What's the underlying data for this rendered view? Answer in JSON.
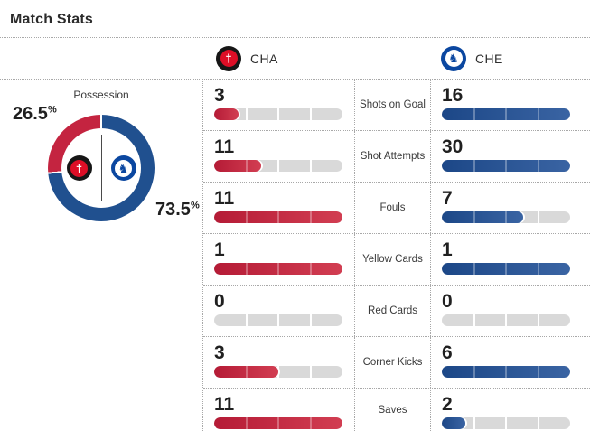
{
  "page": {
    "title": "Match Stats"
  },
  "teams": {
    "home": {
      "abbr": "CHA",
      "color": "#c8233f"
    },
    "away": {
      "abbr": "CHE",
      "color": "#1e4f90"
    }
  },
  "icons": {
    "cha_emblem": "†",
    "che_emblem": "♞"
  },
  "possession": {
    "label": "Possession",
    "home_pct": "26.5",
    "away_pct": "73.5",
    "pct_symbol": "%"
  },
  "stats": {
    "rows": [
      {
        "label": "Shots on Goal",
        "home": 3,
        "away": 16
      },
      {
        "label": "Shot Attempts",
        "home": 11,
        "away": 30
      },
      {
        "label": "Fouls",
        "home": 11,
        "away": 7
      },
      {
        "label": "Yellow Cards",
        "home": 1,
        "away": 1
      },
      {
        "label": "Red Cards",
        "home": 0,
        "away": 0
      },
      {
        "label": "Corner Kicks",
        "home": 3,
        "away": 6
      },
      {
        "label": "Saves",
        "home": 11,
        "away": 2
      }
    ]
  },
  "colors": {
    "bar_track": "#d9d9d9",
    "donut_home": "#c42440",
    "donut_away": "#20508f"
  },
  "chart_data": [
    {
      "type": "pie",
      "title": "Possession",
      "labels": [
        "CHA",
        "CHE"
      ],
      "values": [
        26.5,
        73.5
      ],
      "colors": [
        "#c42440",
        "#20508f"
      ],
      "unit": "%",
      "style": "donut, starts at 12 o'clock, away segment clockwise first, team logos inside hole"
    },
    {
      "type": "bar",
      "orientation": "horizontal",
      "categories": [
        "Shots on Goal",
        "Shot Attempts",
        "Fouls",
        "Yellow Cards",
        "Red Cards",
        "Corner Kicks",
        "Saves"
      ],
      "series": [
        {
          "name": "CHA",
          "color": "#c8233f",
          "values": [
            3,
            11,
            11,
            1,
            0,
            3,
            11
          ]
        },
        {
          "name": "CHE",
          "color": "#1e4f90",
          "values": [
            16,
            30,
            7,
            1,
            0,
            6,
            2
          ]
        }
      ],
      "note": "each row's bars are scaled relative to the max of the two values in that row; 4 segments per track"
    }
  ]
}
